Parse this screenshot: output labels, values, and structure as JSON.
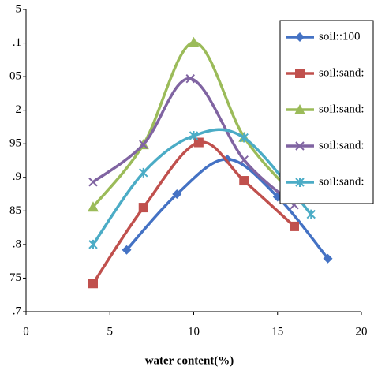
{
  "chart_data": {
    "type": "line",
    "x_label": "water content(%)",
    "xlim": [
      0,
      20
    ],
    "xticks": [
      0,
      5,
      10,
      15,
      20
    ],
    "ylim": [
      1.7,
      2.15
    ],
    "yticks": [
      {
        "value": 1.7,
        "label": ".7"
      },
      {
        "value": 1.75,
        "label": "75"
      },
      {
        "value": 1.8,
        "label": ".8"
      },
      {
        "value": 1.85,
        "label": "85"
      },
      {
        "value": 1.9,
        "label": ".9"
      },
      {
        "value": 1.95,
        "label": "95"
      },
      2,
      {
        "value": 2.05,
        "label": "05"
      },
      {
        "value": 2.1,
        "label": ".1"
      },
      {
        "value": 2.15,
        "label": "5"
      }
    ],
    "smooth": true,
    "legend": "right",
    "series": [
      {
        "name": "soil::100",
        "color": "#4472c4",
        "marker": "diamond",
        "x": [
          6,
          9,
          12,
          15,
          18
        ],
        "values": [
          1.792,
          1.875,
          1.927,
          1.871,
          1.779
        ]
      },
      {
        "name": "soil:sand:",
        "color": "#c0504d",
        "marker": "square",
        "x": [
          4,
          7,
          10.3,
          13,
          16
        ],
        "values": [
          1.742,
          1.855,
          1.952,
          1.895,
          1.827
        ]
      },
      {
        "name": "soil:sand:",
        "color": "#9bbb59",
        "marker": "triangle",
        "x": [
          4,
          7,
          10,
          13,
          16
        ],
        "values": [
          1.856,
          1.949,
          2.101,
          1.96,
          1.873
        ]
      },
      {
        "name": "soil:sand:",
        "color": "#8064a2",
        "marker": "x",
        "x": [
          4,
          7,
          9.8,
          13,
          16
        ],
        "values": [
          1.893,
          1.949,
          2.047,
          1.926,
          1.859
        ]
      },
      {
        "name": "soil:sand:",
        "color": "#4bacc6",
        "marker": "star",
        "x": [
          4,
          7,
          10,
          13,
          17
        ],
        "values": [
          1.8,
          1.907,
          1.962,
          1.959,
          1.845
        ]
      }
    ]
  }
}
